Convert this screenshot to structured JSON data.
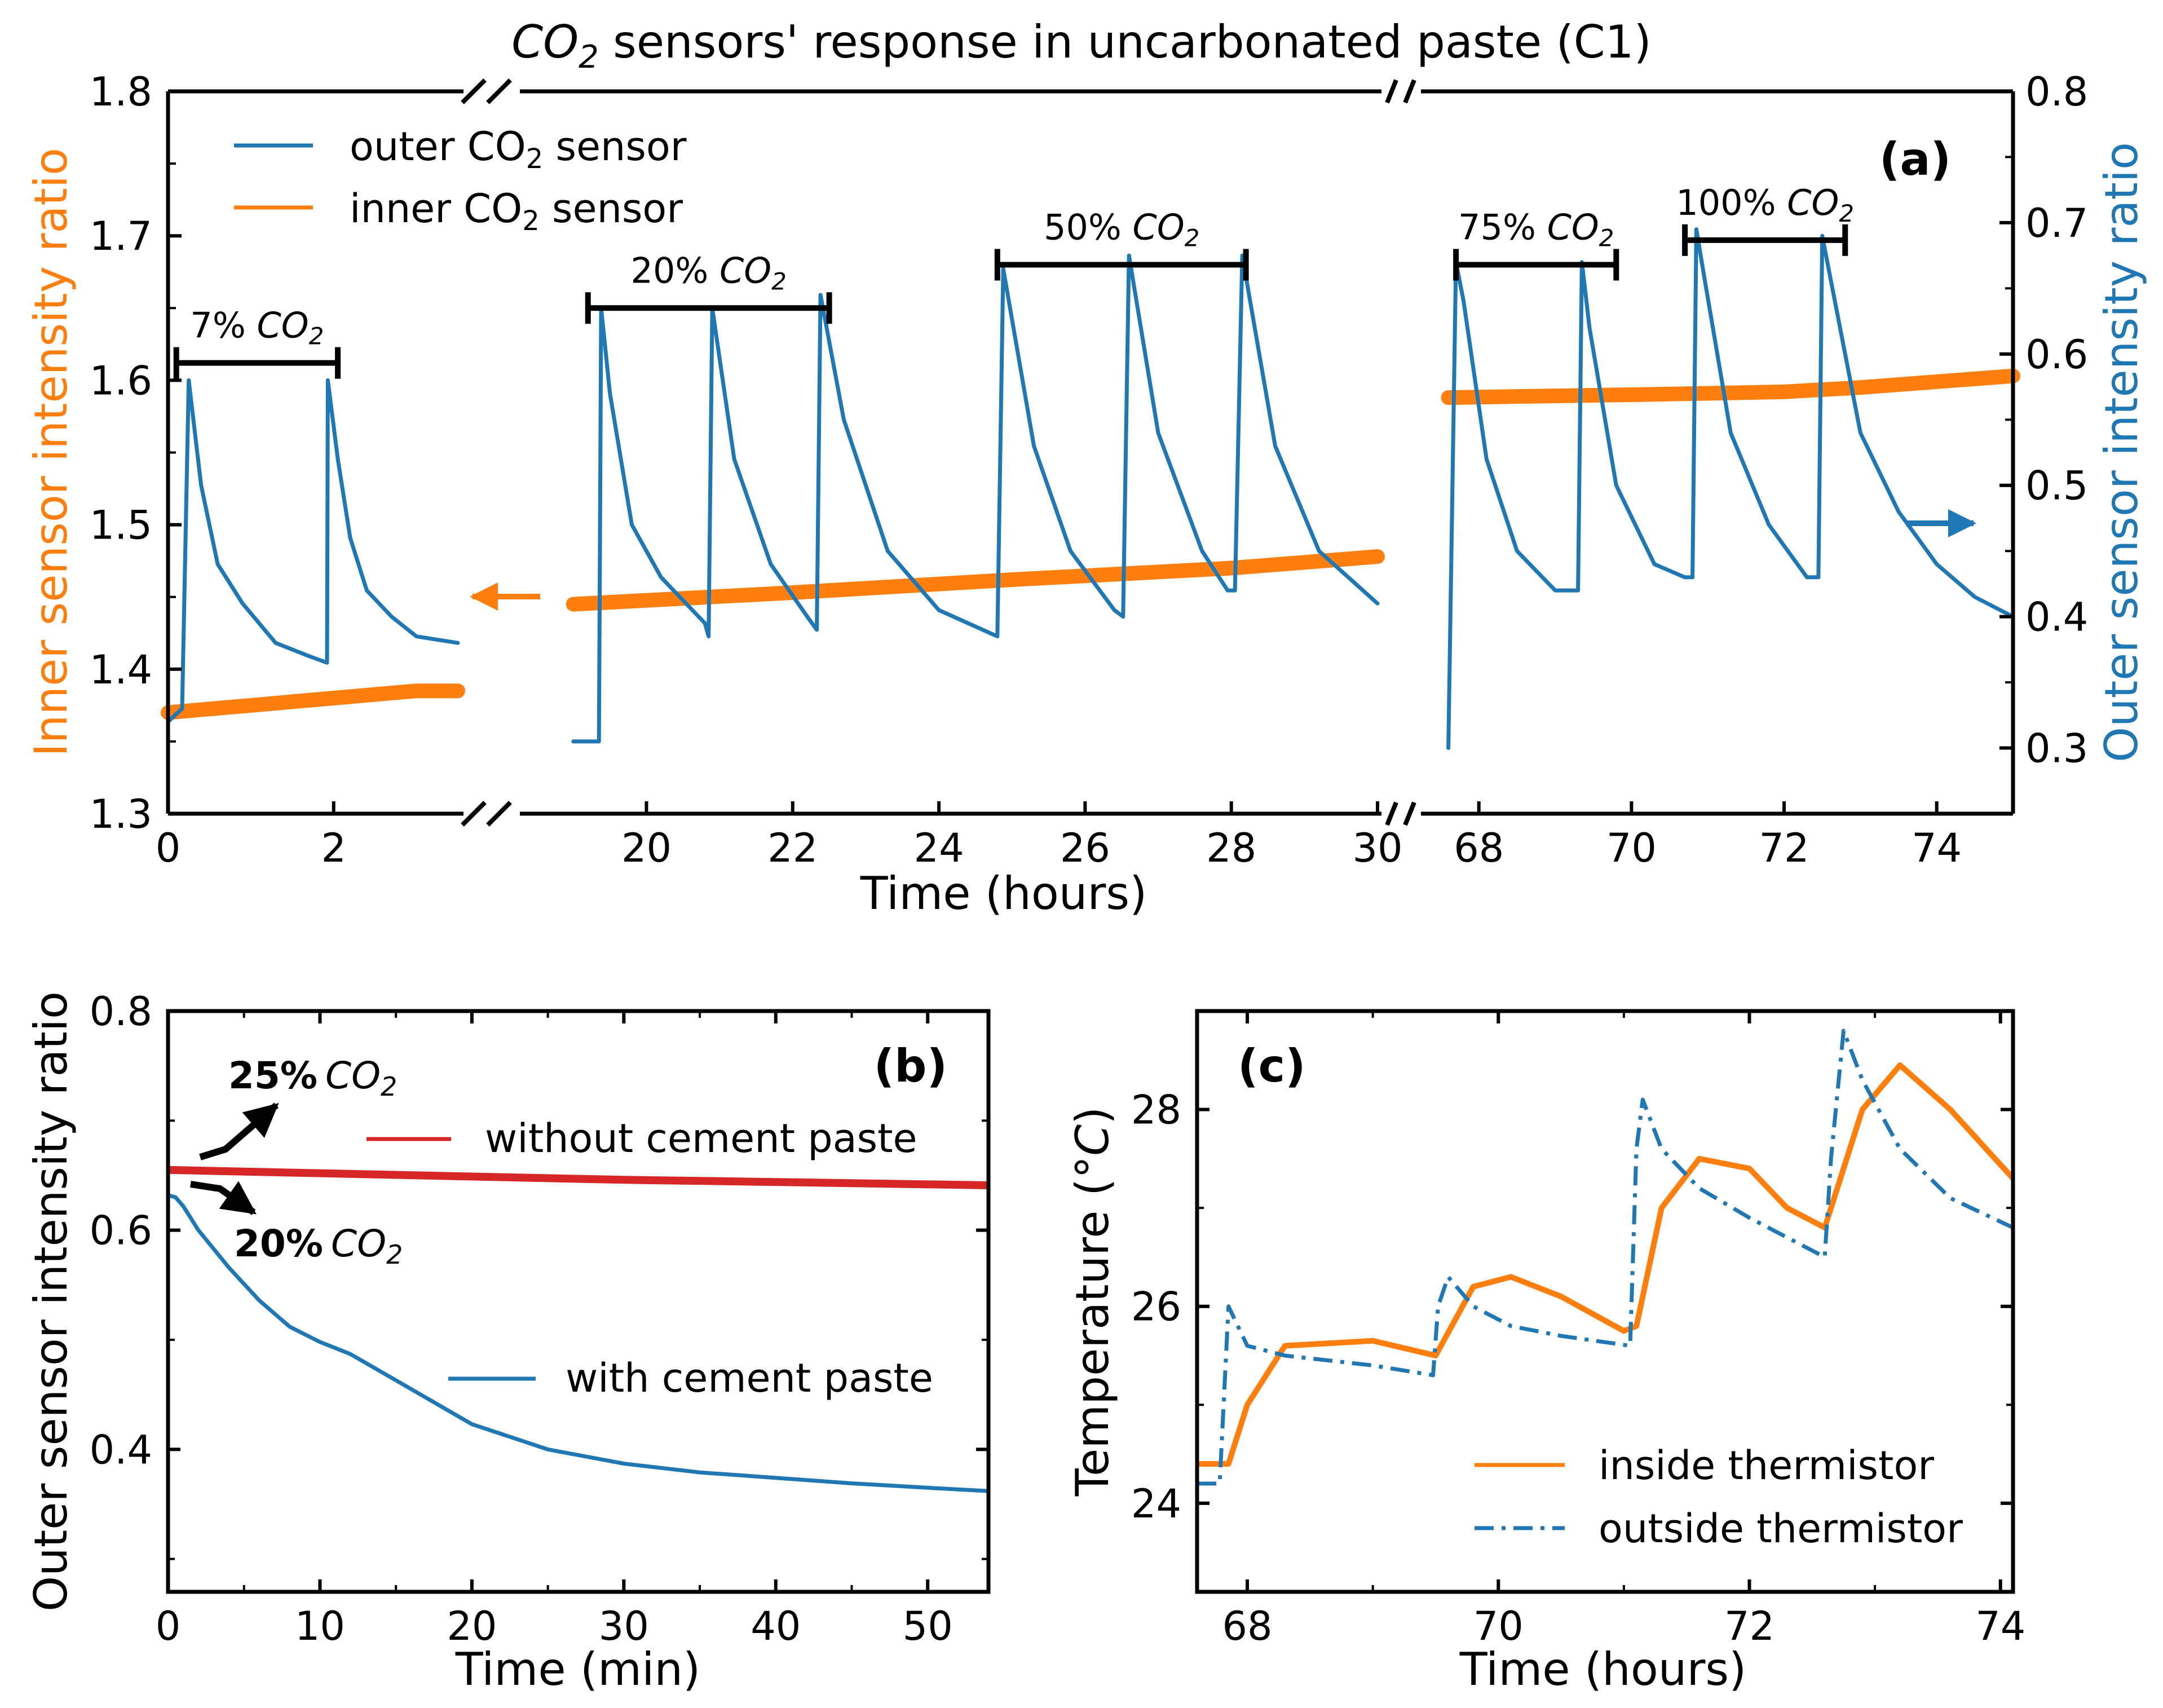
{
  "colors": {
    "outer": "#1f77b4",
    "inner": "#ff7f0e",
    "nopaste": "#d62728",
    "frame": "#000000"
  },
  "chart_data": [
    {
      "panel": "a",
      "type": "line",
      "title_pre": "CO",
      "title_sub": "2",
      "title_post": " sensors' response in uncarbonated paste (C1)",
      "panel_label": "(a)",
      "xlabel": "Time (hours)",
      "ylabel_left": "Inner sensor intensity ratio",
      "ylabel_right": "Outer sensor intensity ratio",
      "x_axis": "broken",
      "x_segments": [
        {
          "range": [
            0,
            3.5
          ],
          "ticks": [
            0,
            2
          ],
          "tick_labels": [
            "0",
            "2"
          ]
        },
        {
          "range": [
            18.5,
            30
          ],
          "ticks": [
            20,
            22,
            24,
            26,
            28,
            30
          ],
          "tick_labels": [
            "20",
            "22",
            "24",
            "26",
            "28",
            "30"
          ]
        },
        {
          "range": [
            67.3,
            75
          ],
          "ticks": [
            68,
            70,
            72,
            74
          ],
          "tick_labels": [
            "68",
            "70",
            "72",
            "74"
          ]
        }
      ],
      "ylim_left": [
        1.3,
        1.8
      ],
      "yticks_left": [
        "1.3",
        "1.4",
        "1.5",
        "1.6",
        "1.7",
        "1.8"
      ],
      "ylim_right": [
        0.25,
        0.8
      ],
      "yticks_right": [
        "0.3",
        "0.4",
        "0.5",
        "0.6",
        "0.7",
        "0.8"
      ],
      "legend": {
        "position": "top-left",
        "entries": [
          {
            "label_pre": "outer CO",
            "label_sub": "2",
            "label_post": " sensor"
          },
          {
            "label_pre": "inner CO",
            "label_sub": "2",
            "label_post": " sensor"
          }
        ]
      },
      "exposure_bars": [
        {
          "pct": "7% ",
          "gas": "CO",
          "sub": "2",
          "x": [
            0.1,
            2.05
          ],
          "level": 1.612
        },
        {
          "pct": "20% ",
          "gas": "CO",
          "sub": "2",
          "x": [
            19.2,
            22.5
          ],
          "level": 1.65
        },
        {
          "pct": "50% ",
          "gas": "CO",
          "sub": "2",
          "x": [
            24.8,
            28.2
          ],
          "level": 1.68
        },
        {
          "pct": "75% ",
          "gas": "CO",
          "sub": "2",
          "x": [
            67.7,
            69.8
          ],
          "level": 1.68
        },
        {
          "pct": "100% ",
          "gas": "CO",
          "sub": "2",
          "x": [
            70.7,
            72.8
          ],
          "level": 1.697
        }
      ],
      "series": [
        {
          "name": "outer CO2 sensor",
          "axis": "right",
          "x": [
            0,
            0.17,
            0.25,
            0.4,
            0.6,
            0.9,
            1.3,
            1.7,
            1.92,
            1.93,
            2.05,
            2.2,
            2.4,
            2.7,
            3.0,
            3.5,
            19.0,
            19.35,
            19.38,
            19.5,
            19.8,
            20.2,
            20.8,
            20.85,
            20.9,
            21.2,
            21.7,
            22.2,
            22.33,
            22.38,
            22.7,
            23.3,
            24.0,
            24.8,
            24.88,
            25.3,
            25.8,
            26.4,
            26.52,
            26.6,
            27.0,
            27.6,
            27.95,
            28.05,
            28.15,
            28.6,
            29.2,
            30.0,
            67.6,
            67.7,
            67.8,
            68.1,
            68.5,
            69.0,
            69.3,
            69.35,
            69.45,
            69.8,
            70.3,
            70.7,
            70.8,
            70.85,
            70.95,
            71.3,
            71.8,
            72.3,
            72.45,
            72.5,
            72.6,
            73.0,
            73.5,
            74.0,
            74.5,
            75.0
          ],
          "y": [
            0.32,
            0.33,
            0.58,
            0.5,
            0.44,
            0.41,
            0.38,
            0.37,
            0.365,
            0.58,
            0.52,
            0.46,
            0.42,
            0.4,
            0.385,
            0.38,
            0.305,
            0.305,
            0.635,
            0.57,
            0.47,
            0.43,
            0.395,
            0.385,
            0.635,
            0.52,
            0.44,
            0.4,
            0.39,
            0.645,
            0.55,
            0.45,
            0.405,
            0.385,
            0.665,
            0.53,
            0.45,
            0.405,
            0.4,
            0.675,
            0.54,
            0.45,
            0.42,
            0.42,
            0.675,
            0.53,
            0.45,
            0.41,
            0.3,
            0.67,
            0.64,
            0.52,
            0.45,
            0.42,
            0.42,
            0.67,
            0.62,
            0.5,
            0.44,
            0.43,
            0.43,
            0.695,
            0.66,
            0.54,
            0.47,
            0.43,
            0.43,
            0.69,
            0.66,
            0.54,
            0.48,
            0.44,
            0.415,
            0.4
          ]
        },
        {
          "name": "inner CO2 sensor",
          "axis": "left",
          "x": [
            0,
            1.0,
            2.0,
            3.0,
            3.5,
            19.0,
            22.0,
            25.0,
            28.0,
            30.0,
            67.6,
            70.0,
            72.0,
            73.0,
            75.0
          ],
          "y": [
            1.37,
            1.375,
            1.38,
            1.385,
            1.385,
            1.445,
            1.453,
            1.462,
            1.47,
            1.478,
            1.588,
            1.59,
            1.592,
            1.595,
            1.603
          ]
        }
      ]
    },
    {
      "panel": "b",
      "type": "line",
      "panel_label": "(b)",
      "xlabel": "Time (min)",
      "ylabel": "Outer sensor intensity ratio",
      "xlim": [
        0,
        54
      ],
      "xticks": [
        "0",
        "10",
        "20",
        "30",
        "40",
        "50"
      ],
      "ylim": [
        0.27,
        0.8
      ],
      "yticks": [
        "0.4",
        "0.6",
        "0.8"
      ],
      "annotations": [
        {
          "bold": "25%",
          "gas": "CO",
          "sub": "2",
          "near": "upper-left"
        },
        {
          "bold": "20%",
          "gas": "CO",
          "sub": "2",
          "near": "left"
        }
      ],
      "series": [
        {
          "name": "without cement paste",
          "x": [
            0,
            10,
            20,
            30,
            40,
            54
          ],
          "y": [
            0.655,
            0.652,
            0.649,
            0.646,
            0.644,
            0.641
          ]
        },
        {
          "name": "with cement paste",
          "x": [
            0,
            0.5,
            1,
            2,
            4,
            6,
            8,
            10,
            12,
            15,
            20,
            25,
            30,
            35,
            40,
            45,
            50,
            54
          ],
          "y": [
            0.632,
            0.63,
            0.622,
            0.6,
            0.566,
            0.536,
            0.512,
            0.498,
            0.487,
            0.463,
            0.423,
            0.4,
            0.387,
            0.379,
            0.374,
            0.369,
            0.365,
            0.362
          ]
        }
      ]
    },
    {
      "panel": "c",
      "type": "line",
      "panel_label": "(c)",
      "xlabel": "Time (hours)",
      "ylabel": "Temperature (°C)",
      "ylabel_pre": "Temperature (",
      "ylabel_unit": "°C",
      "ylabel_post": ")",
      "xlim": [
        67.6,
        74.1
      ],
      "xticks": [
        "68",
        "70",
        "72",
        "74"
      ],
      "ylim": [
        23.1,
        29.0
      ],
      "yticks": [
        "24",
        "26",
        "28"
      ],
      "legend": {
        "position": "bottom-right",
        "entries": [
          "inside thermistor",
          "outside thermistor"
        ]
      },
      "series": [
        {
          "name": "inside thermistor",
          "style": "solid",
          "x": [
            67.6,
            67.85,
            68.0,
            68.3,
            69.0,
            69.5,
            69.8,
            70.1,
            70.5,
            71.0,
            71.1,
            71.3,
            71.6,
            72.0,
            72.3,
            72.6,
            72.9,
            73.2,
            73.6,
            74.1
          ],
          "y": [
            24.4,
            24.4,
            25.0,
            25.6,
            25.65,
            25.5,
            26.2,
            26.3,
            26.1,
            25.75,
            25.8,
            27.0,
            27.5,
            27.4,
            27.0,
            26.8,
            28.0,
            28.45,
            28.0,
            27.3
          ]
        },
        {
          "name": "outside thermistor",
          "style": "dash-dot",
          "x": [
            67.6,
            67.78,
            67.85,
            68.0,
            68.3,
            69.0,
            69.48,
            69.52,
            69.6,
            69.8,
            70.1,
            70.5,
            71.05,
            71.1,
            71.15,
            71.3,
            71.6,
            72.0,
            72.6,
            72.65,
            72.75,
            72.9,
            73.2,
            73.6,
            74.1
          ],
          "y": [
            24.2,
            24.2,
            26.0,
            25.6,
            25.5,
            25.4,
            25.3,
            26.0,
            26.3,
            26.0,
            25.8,
            25.7,
            25.6,
            27.6,
            28.1,
            27.6,
            27.2,
            26.9,
            26.5,
            27.5,
            28.8,
            28.3,
            27.6,
            27.1,
            26.8
          ]
        }
      ]
    }
  ]
}
